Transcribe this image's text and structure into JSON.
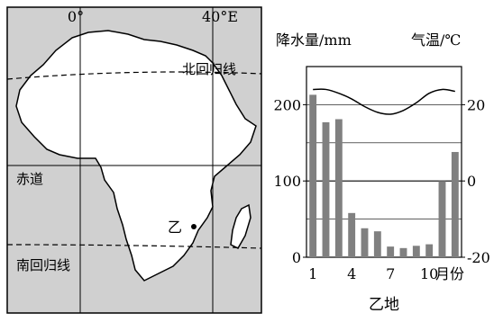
{
  "map": {
    "lon_labels": [
      "0°",
      "40°E"
    ],
    "lat_labels": {
      "north_tropic": "北回归线",
      "equator": "赤道",
      "south_tropic": "南回归线"
    },
    "point_label": "乙"
  },
  "chart_data": {
    "type": "bar",
    "categories": [
      "1",
      "2",
      "3",
      "4",
      "5",
      "6",
      "7",
      "8",
      "9",
      "10",
      "11",
      "12"
    ],
    "precipitation": [
      213,
      177,
      181,
      58,
      38,
      34,
      14,
      12,
      15,
      17,
      100,
      138
    ],
    "temperature": [
      24,
      24,
      23,
      21.5,
      19.5,
      18,
      17.5,
      18.5,
      20.5,
      23,
      24,
      23.5
    ],
    "left_axis": {
      "title": "降水量/mm",
      "ticks": [
        0,
        100,
        200
      ],
      "range": [
        0,
        250
      ]
    },
    "right_axis": {
      "title": "气温/℃",
      "ticks": [
        -20,
        0,
        20
      ],
      "range": [
        -20,
        30
      ]
    },
    "x_tick_labels": [
      "1",
      "4",
      "7",
      "10"
    ],
    "x_unit_label": "月份",
    "caption": "乙地",
    "bar_color": "#808080",
    "line_color": "#000000",
    "grid": true
  }
}
